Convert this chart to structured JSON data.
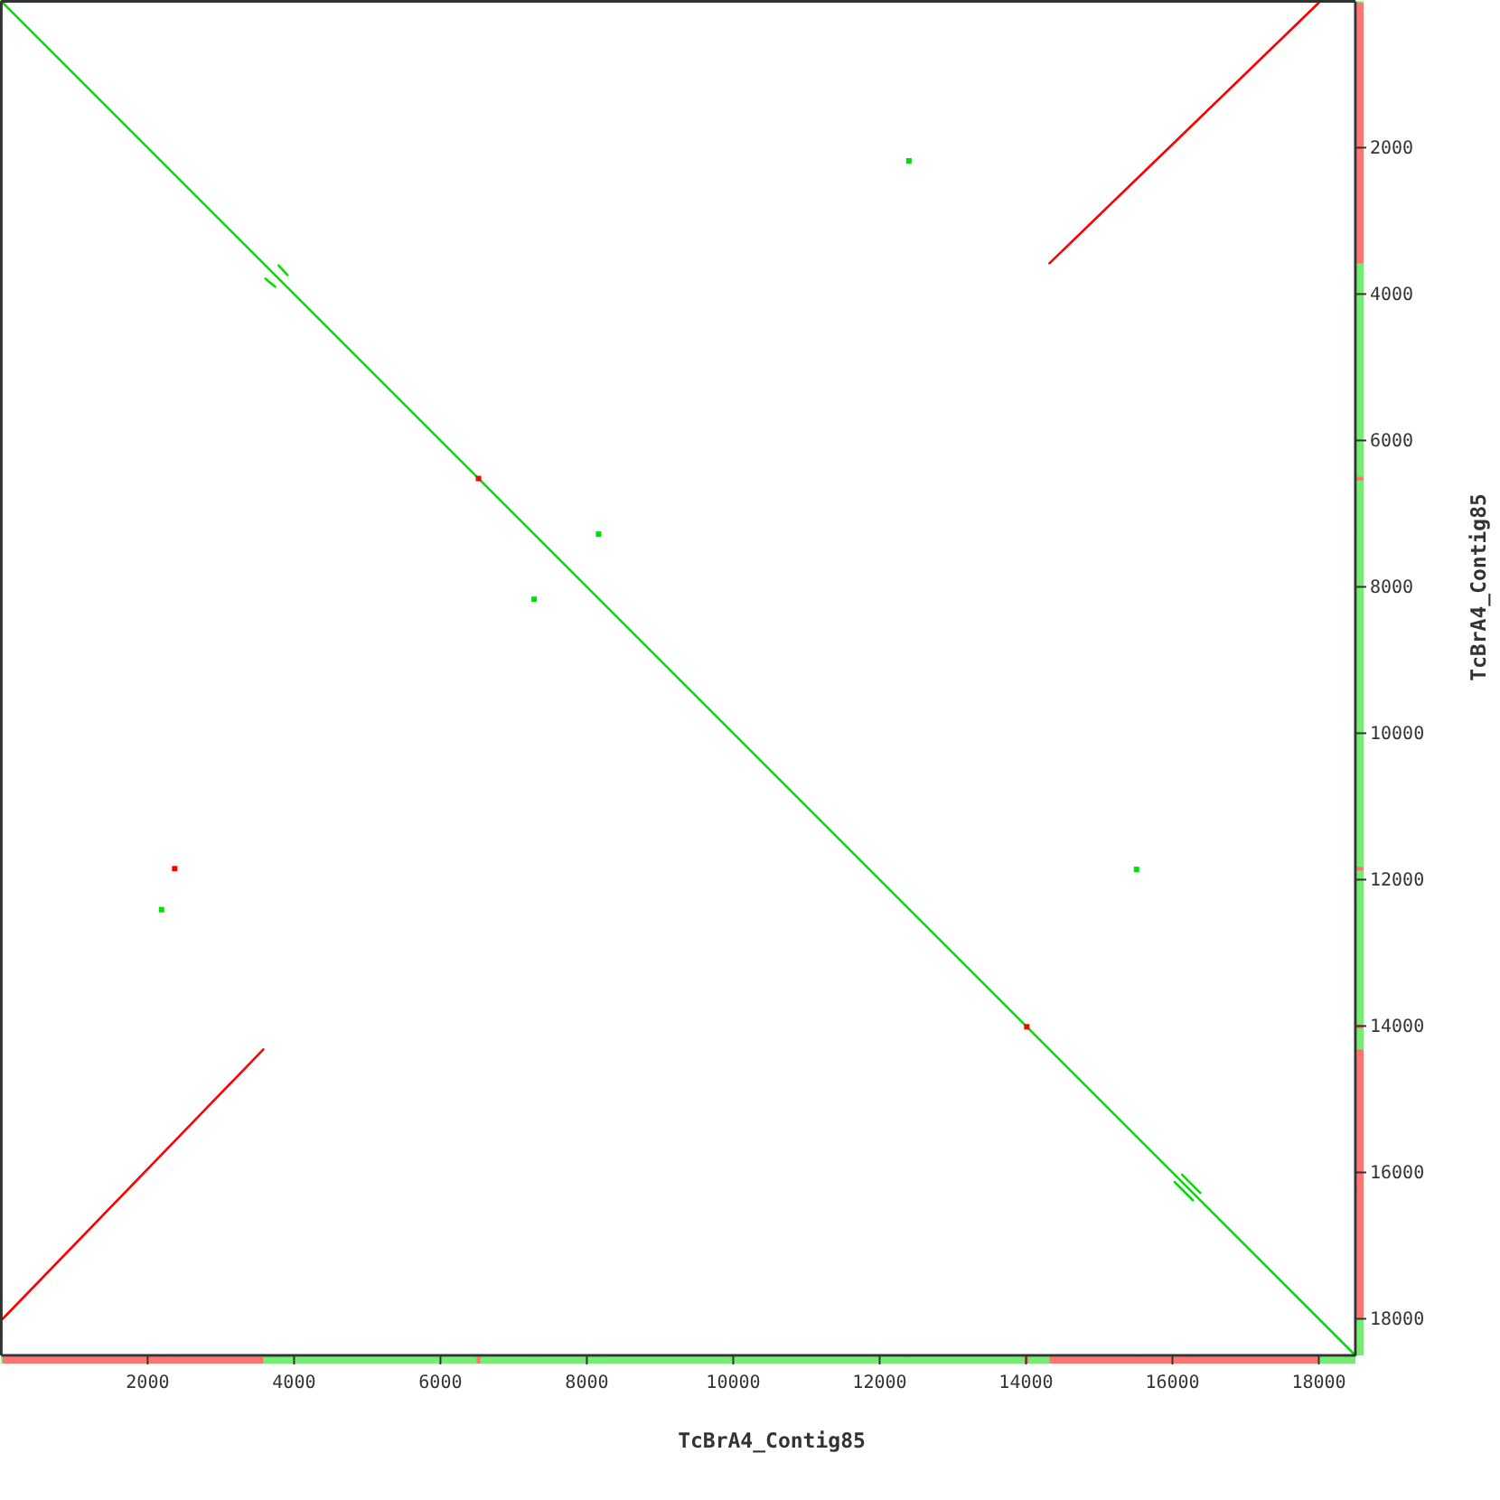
{
  "chart_data": {
    "type": "line",
    "xlabel": "TcBrA4_Contig85",
    "ylabel": "TcBrA4_Contig85",
    "xlim": [
      0,
      18500
    ],
    "ylim": [
      18500,
      0
    ],
    "xticks": [
      2000,
      4000,
      6000,
      8000,
      10000,
      12000,
      14000,
      16000,
      18000
    ],
    "yticks": [
      2000,
      4000,
      6000,
      8000,
      10000,
      12000,
      14000,
      16000,
      18000
    ],
    "series": [
      {
        "color": "#00e000",
        "x": [
          0,
          18500
        ],
        "values": [
          0,
          18500
        ]
      },
      {
        "color": "#00e000",
        "x": [
          3610,
          3740
        ],
        "values": [
          3790,
          3900
        ]
      },
      {
        "color": "#00e000",
        "x": [
          3790,
          3910
        ],
        "values": [
          3610,
          3740
        ]
      },
      {
        "color": "#00e000",
        "x": [
          16030,
          16280
        ],
        "values": [
          16130,
          16380
        ]
      },
      {
        "color": "#00e000",
        "x": [
          16130,
          16380
        ],
        "values": [
          16030,
          16280
        ]
      },
      {
        "type": "scatter",
        "marker": "square",
        "color": "#00e000",
        "x": [
          8160,
          7280,
          12400,
          2190,
          15510
        ],
        "values": [
          7280,
          8170,
          2180,
          12410,
          11860
        ]
      },
      {
        "color": "#ff0000",
        "x": [
          20,
          3580
        ],
        "values": [
          18000,
          14320
        ]
      },
      {
        "color": "#ff0000",
        "x": [
          14320,
          18000
        ],
        "values": [
          3580,
          20
        ]
      },
      {
        "type": "scatter",
        "marker": "square",
        "color": "#ff0000",
        "x": [
          2370,
          6520,
          14010
        ],
        "values": [
          11850,
          6520,
          14010
        ]
      }
    ]
  }
}
